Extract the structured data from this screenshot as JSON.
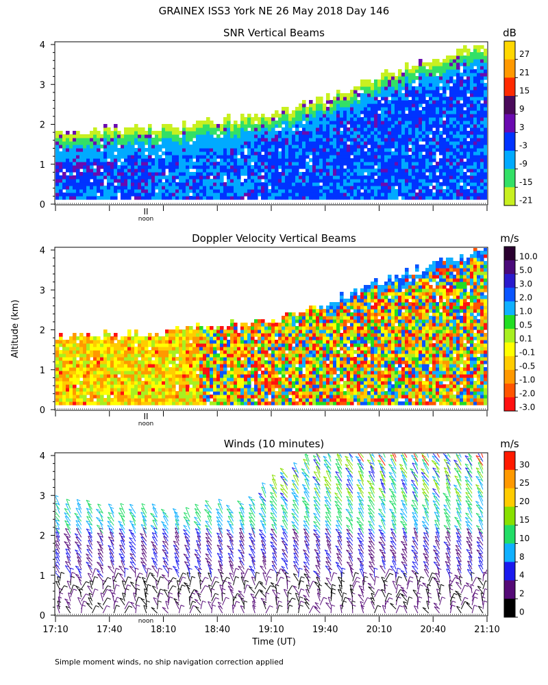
{
  "figure": {
    "title": "GRAINEX ISS3 York NE  26 May 2018 Day 146",
    "ylabel": "Altitude (km)",
    "xlabel": "Time (UT)",
    "footnote": "Simple moment winds, no ship navigation correction applied",
    "noon_label": "noon",
    "noon_mark": "II"
  },
  "chart_data": [
    {
      "type": "heatmap",
      "title": "SNR Vertical Beams",
      "xlim": [
        "17:10",
        "21:10"
      ],
      "ylim": [
        0,
        4
      ],
      "y_ticks": [
        "0",
        "1",
        "2",
        "3",
        "4"
      ],
      "colorbar": {
        "unit": "dB",
        "labels": [
          "27",
          "21",
          "15",
          "9",
          "3",
          "-3",
          "-9",
          "-15",
          "-21"
        ],
        "colors": [
          "#ffd700",
          "#ff9900",
          "#ff2a00",
          "#4a0a5a",
          "#6a0ab0",
          "#0033ff",
          "#00aaff",
          "#33e066",
          "#c8f020"
        ]
      },
      "description_values": {
        "echo_top_km": [
          1.8,
          1.9,
          2.2,
          2.6,
          3.2,
          4.0
        ],
        "echo_top_times": [
          "17:10",
          "18:10",
          "19:10",
          "19:40",
          "20:10",
          "21:10"
        ]
      }
    },
    {
      "type": "heatmap",
      "title": "Doppler Velocity Vertical Beams",
      "xlim": [
        "17:10",
        "21:10"
      ],
      "ylim": [
        0,
        4
      ],
      "y_ticks": [
        "0",
        "1",
        "2",
        "3",
        "4"
      ],
      "colorbar": {
        "unit": "m/s",
        "labels": [
          "10.0",
          "5.0",
          "3.0",
          "2.0",
          "1.0",
          "0.5",
          "0.1",
          "-0.1",
          "-0.5",
          "-1.0",
          "-2.0",
          "-3.0"
        ],
        "colors": [
          "#2a0030",
          "#4a0a7a",
          "#2a1acc",
          "#0a55ff",
          "#10b0ff",
          "#22dd22",
          "#a8f020",
          "#ffff00",
          "#ffcc00",
          "#ff9900",
          "#ff5500",
          "#ff1111"
        ]
      }
    },
    {
      "type": "scatter",
      "title": "Winds (10 minutes)",
      "xlim": [
        "17:10",
        "21:10"
      ],
      "ylim": [
        0,
        4
      ],
      "y_ticks": [
        "0",
        "1",
        "2",
        "3",
        "4"
      ],
      "x_ticks": [
        "17:10",
        "17:40",
        "18:10",
        "18:40",
        "19:10",
        "19:40",
        "20:10",
        "20:40",
        "21:10"
      ],
      "colorbar": {
        "unit": "m/s",
        "labels": [
          "30",
          "25",
          "20",
          "15",
          "10",
          "8",
          "4",
          "2",
          "0"
        ],
        "colors": [
          "#ff1a00",
          "#ff9900",
          "#ffcc00",
          "#88e000",
          "#22dd66",
          "#10b0ff",
          "#1a1aee",
          "#550a77",
          "#000000"
        ]
      },
      "profile_top_km": [
        2.8,
        2.7,
        2.7,
        2.7,
        2.6,
        2.6,
        2.6,
        2.6,
        2.6,
        2.6,
        2.5,
        2.5,
        2.5,
        2.6,
        2.7,
        2.7,
        2.6,
        2.7,
        2.8,
        3.1,
        3.3,
        3.5,
        3.6,
        3.9,
        4.0,
        4.0,
        4.0,
        4.0,
        4.0,
        4.0,
        4.0,
        4.0,
        4.0,
        4.0,
        4.0,
        4.0,
        4.0,
        4.0,
        4.0,
        4.0
      ]
    }
  ]
}
